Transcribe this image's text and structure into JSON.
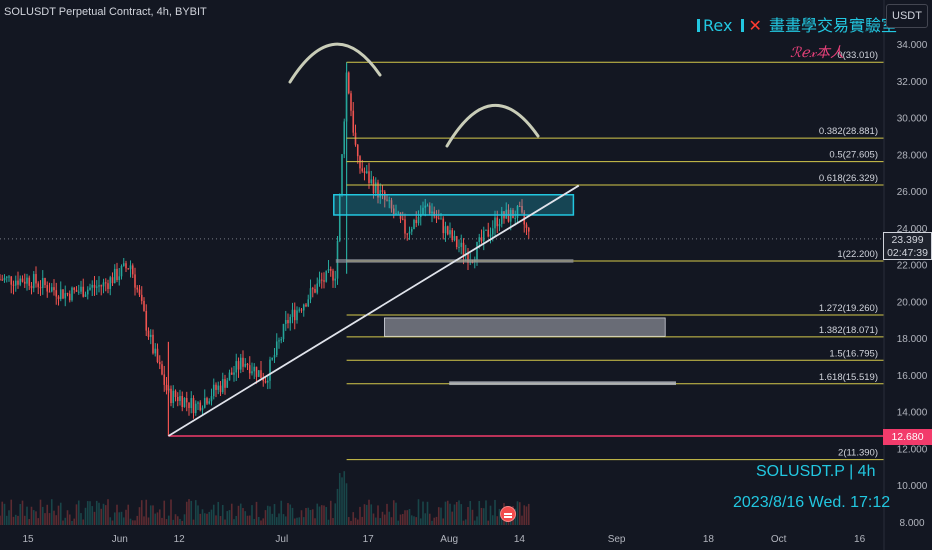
{
  "header": {
    "title": "SOLUSDT Perpetual Contract, 4h, BYBIT",
    "currency_label": "USDT"
  },
  "branding": {
    "rex": "Rex",
    "cross": "✕",
    "lab": "畫畫學交易實驗室",
    "author": "ℛℯ𝓍本人"
  },
  "overlays": {
    "symbol": "SOLUSDT.P | 4h",
    "datetime": "2023/8/16 Wed. 17:12"
  },
  "price_labels": {
    "last_price": "23.399",
    "countdown": "02:47:39",
    "marked_level": "12.680"
  },
  "colors": {
    "background": "#131722",
    "up": "#26a69a",
    "down": "#ef5350",
    "fib": "#d4c84b",
    "zone": "#22c7e0",
    "accent_pink": "#f23b6b"
  },
  "chart_data": {
    "type": "candlestick",
    "symbol": "SOLUSDT",
    "timeframe": "4h",
    "y_axis": {
      "range": [
        8.0,
        34.0
      ],
      "ticks": [
        "8.000",
        "10.000",
        "12.000",
        "14.000",
        "16.000",
        "18.000",
        "20.000",
        "22.000",
        "24.000",
        "26.000",
        "28.000",
        "30.000",
        "32.000",
        "34.000"
      ]
    },
    "x_axis": {
      "ticks": [
        "15",
        "Jun",
        "12",
        "Jul",
        "17",
        "Aug",
        "14",
        "Sep",
        "18",
        "Oct",
        "16"
      ]
    },
    "close_path": [
      {
        "x": "May 15",
        "close": 21.2
      },
      {
        "x": "May 22",
        "close": 20.4
      },
      {
        "x": "May 29",
        "close": 20.9
      },
      {
        "x": "Jun 3",
        "close": 22.0
      },
      {
        "x": "Jun 7",
        "close": 17.5
      },
      {
        "x": "Jun 10",
        "close": 14.9
      },
      {
        "x": "Jun 12",
        "close": 14.8
      },
      {
        "x": "Jun 15",
        "close": 14.3
      },
      {
        "x": "Jun 20",
        "close": 15.5
      },
      {
        "x": "Jun 24",
        "close": 16.8
      },
      {
        "x": "Jun 28",
        "close": 15.8
      },
      {
        "x": "Jul 2",
        "close": 18.9
      },
      {
        "x": "Jul 8",
        "close": 21.0
      },
      {
        "x": "Jul 11",
        "close": 21.6
      },
      {
        "x": "Jul 13",
        "close": 32.5
      },
      {
        "x": "Jul 15",
        "close": 27.5
      },
      {
        "x": "Jul 20",
        "close": 25.5
      },
      {
        "x": "Jul 24",
        "close": 23.8
      },
      {
        "x": "Jul 28",
        "close": 25.2
      },
      {
        "x": "Aug 2",
        "close": 23.2
      },
      {
        "x": "Aug 5",
        "close": 22.4
      },
      {
        "x": "Aug 10",
        "close": 24.5
      },
      {
        "x": "Aug 14",
        "close": 24.8
      },
      {
        "x": "Aug 16",
        "close": 23.4
      }
    ],
    "fib_levels": [
      {
        "label": "0(33.010)",
        "value": 33.01
      },
      {
        "label": "0.382(28.881)",
        "value": 28.881
      },
      {
        "label": "0.5(27.605)",
        "value": 27.605
      },
      {
        "label": "0.618(26.329)",
        "value": 26.329
      },
      {
        "label": "1(22.200)",
        "value": 22.2
      },
      {
        "label": "1.272(19.260)",
        "value": 19.26
      },
      {
        "label": "1.382(18.071)",
        "value": 18.071
      },
      {
        "label": "1.5(16.795)",
        "value": 16.795
      },
      {
        "label": "1.618(15.519)",
        "value": 15.519
      },
      {
        "label": "2(11.390)",
        "value": 11.39
      }
    ],
    "horizontal_line": 12.68,
    "zones": [
      {
        "name": "resistance",
        "from": 24.7,
        "to": 25.8
      },
      {
        "name": "support",
        "from": 22.1,
        "to": 22.3
      },
      {
        "name": "target-1",
        "from": 18.1,
        "to": 19.1
      },
      {
        "name": "target-2",
        "from": 15.45,
        "to": 15.65
      }
    ],
    "trendline": {
      "from": {
        "x": "Jun 10",
        "price": 12.68
      },
      "to": {
        "x": "Aug 25",
        "price": 26.3
      }
    },
    "last_price": 23.399
  }
}
